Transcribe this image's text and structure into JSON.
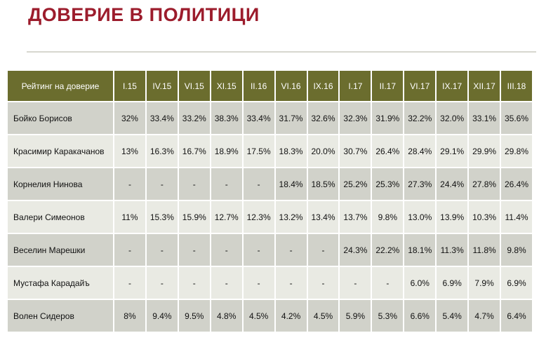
{
  "page": {
    "title": "ДОВЕРИЕ В ПОЛИТИЦИ"
  },
  "colors": {
    "title": "#9c1c2c",
    "header_bg": "#6b6d2e",
    "row_dark": "#d1d2ca",
    "row_light": "#e9eae3"
  },
  "chart_data": {
    "type": "table",
    "header_label": "Рейтинг на доверие",
    "columns": [
      "I.15",
      "IV.15",
      "VI.15",
      "XI.15",
      "II.16",
      "VI.16",
      "IX.16",
      "I.17",
      "II.17",
      "VI.17",
      "IX.17",
      "XII.17",
      "III.18"
    ],
    "rows": [
      {
        "name": "Бойко Борисов",
        "values": [
          "32%",
          "33.4%",
          "33.2%",
          "38.3%",
          "33.4%",
          "31.7%",
          "32.6%",
          "32.3%",
          "31.9%",
          "32.2%",
          "32.0%",
          "33.1%",
          "35.6%"
        ]
      },
      {
        "name": "Красимир Каракачанов",
        "values": [
          "13%",
          "16.3%",
          "16.7%",
          "18.9%",
          "17.5%",
          "18.3%",
          "20.0%",
          "30.7%",
          "26.4%",
          "28.4%",
          "29.1%",
          "29.9%",
          "29.8%"
        ]
      },
      {
        "name": "Корнелия Нинова",
        "values": [
          "-",
          "-",
          "-",
          "-",
          "-",
          "18.4%",
          "18.5%",
          "25.2%",
          "25.3%",
          "27.3%",
          "24.4%",
          "27.8%",
          "26.4%"
        ]
      },
      {
        "name": "Валери Симеонов",
        "values": [
          "11%",
          "15.3%",
          "15.9%",
          "12.7%",
          "12.3%",
          "13.2%",
          "13.4%",
          "13.7%",
          "9.8%",
          "13.0%",
          "13.9%",
          "10.3%",
          "11.4%"
        ]
      },
      {
        "name": "Веселин Марешки",
        "values": [
          "-",
          "-",
          "-",
          "-",
          "-",
          "-",
          "-",
          "24.3%",
          "22.2%",
          "18.1%",
          "11.3%",
          "11.8%",
          "9.8%"
        ]
      },
      {
        "name": "Мустафа Карадайъ",
        "values": [
          "-",
          "-",
          "-",
          "-",
          "-",
          "-",
          "-",
          "-",
          "-",
          "6.0%",
          "6.9%",
          "7.9%",
          "6.9%"
        ]
      },
      {
        "name": "Волен Сидеров",
        "values": [
          "8%",
          "9.4%",
          "9.5%",
          "4.8%",
          "4.5%",
          "4.2%",
          "4.5%",
          "5.9%",
          "5.3%",
          "6.6%",
          "5.4%",
          "4.7%",
          "6.4%"
        ]
      }
    ]
  }
}
